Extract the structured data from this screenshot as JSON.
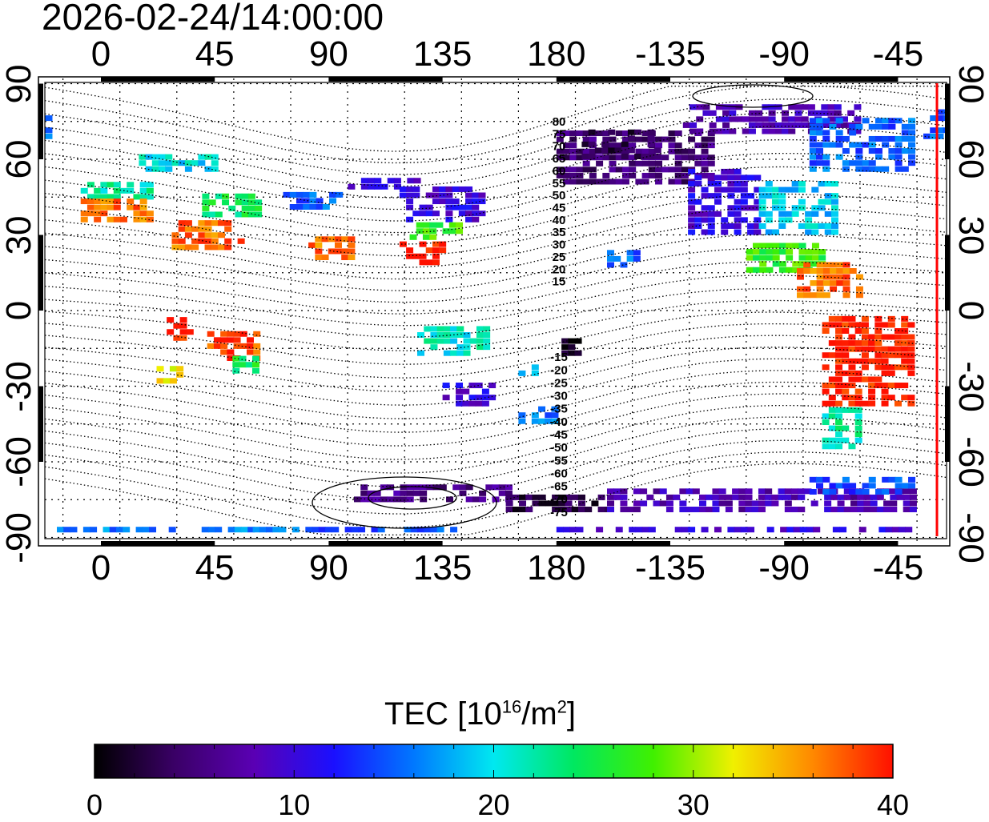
{
  "title": "2026-02-24/14:00:00",
  "x_ticks": [
    "0",
    "45",
    "90",
    "135",
    "180",
    "-135",
    "-90",
    "-45"
  ],
  "y_ticks": [
    "90",
    "60",
    "30",
    "0",
    "-30",
    "-60",
    "-90"
  ],
  "maglat_labels": [
    "80",
    "75",
    "70",
    "65",
    "60",
    "55",
    "50",
    "45",
    "40",
    "35",
    "30",
    "25",
    "20",
    "15",
    "-15",
    "-20",
    "-25",
    "-30",
    "-35",
    "-40",
    "-45",
    "-50",
    "-55",
    "-60",
    "-65",
    "-70",
    "-75"
  ],
  "colorbar": {
    "label_main": "TEC  [10",
    "label_exp": "16",
    "label_unit": "/m",
    "label_exp2": "2",
    "label_end": "]",
    "ticks": [
      "0",
      "10",
      "20",
      "30",
      "40"
    ],
    "range": [
      0,
      40
    ],
    "colors": [
      "#000000",
      "#3a0066",
      "#5a00b4",
      "#1a10ff",
      "#0078ff",
      "#00e8f0",
      "#00e860",
      "#40f000",
      "#f0f000",
      "#ff8800",
      "#ff1000"
    ]
  },
  "terminator_color": "#ff0000",
  "tec_regions": [
    {
      "lon": [
        -8,
        20
      ],
      "lat": [
        44,
        50
      ],
      "tec": 22
    },
    {
      "lon": [
        -8,
        20
      ],
      "lat": [
        35,
        44
      ],
      "tec": 37
    },
    {
      "lon": [
        28,
        55
      ],
      "lat": [
        24,
        35
      ],
      "tec": 37
    },
    {
      "lon": [
        40,
        62
      ],
      "lat": [
        37,
        45
      ],
      "tec": 24
    },
    {
      "lon": [
        15,
        45
      ],
      "lat": [
        55,
        62
      ],
      "tec": 20
    },
    {
      "lon": [
        72,
        95
      ],
      "lat": [
        40,
        46
      ],
      "tec": 15
    },
    {
      "lon": [
        95,
        125
      ],
      "lat": [
        48,
        52
      ],
      "tec": 10
    },
    {
      "lon": [
        82,
        98
      ],
      "lat": [
        20,
        28
      ],
      "tec": 37
    },
    {
      "lon": [
        118,
        150
      ],
      "lat": [
        35,
        48
      ],
      "tec": 10
    },
    {
      "lon": [
        122,
        142
      ],
      "lat": [
        28,
        34
      ],
      "tec": 27
    },
    {
      "lon": [
        118,
        135
      ],
      "lat": [
        18,
        27
      ],
      "tec": 40
    },
    {
      "lon": [
        26,
        34
      ],
      "lat": [
        -12,
        -4
      ],
      "tec": 40
    },
    {
      "lon": [
        42,
        62
      ],
      "lat": [
        -20,
        -10
      ],
      "tec": 38
    },
    {
      "lon": [
        52,
        62
      ],
      "lat": [
        -25,
        -20
      ],
      "tec": 25
    },
    {
      "lon": [
        22,
        32
      ],
      "lat": [
        -29,
        -22
      ],
      "tec": 33
    },
    {
      "lon": [
        125,
        152
      ],
      "lat": [
        -18,
        -8
      ],
      "tec": 21
    },
    {
      "lon": [
        135,
        155
      ],
      "lat": [
        -38,
        -30
      ],
      "tec": 10
    },
    {
      "lon": [
        165,
        178
      ],
      "lat": [
        -45,
        -38
      ],
      "tec": 16
    },
    {
      "lon": [
        165,
        172
      ],
      "lat": [
        -26,
        -22
      ],
      "tec": 17
    },
    {
      "lon": [
        -178,
        -172
      ],
      "lat": [
        -18,
        -13
      ],
      "tec": 1
    },
    {
      "lon": [
        -160,
        -148
      ],
      "lat": [
        17,
        22
      ],
      "tec": 15
    },
    {
      "lon": [
        -180,
        -120
      ],
      "lat": [
        50,
        70
      ],
      "tec": 5
    },
    {
      "lon": [
        -170,
        -140
      ],
      "lat": [
        60,
        72
      ],
      "tec": 3
    },
    {
      "lon": [
        -130,
        -60
      ],
      "lat": [
        70,
        82
      ],
      "tec": 8
    },
    {
      "lon": [
        -128,
        -100
      ],
      "lat": [
        30,
        55
      ],
      "tec": 10
    },
    {
      "lon": [
        -100,
        -70
      ],
      "lat": [
        30,
        50
      ],
      "tec": 19
    },
    {
      "lon": [
        -80,
        -40
      ],
      "lat": [
        55,
        75
      ],
      "tec": 15
    },
    {
      "lon": [
        -105,
        -75
      ],
      "lat": [
        15,
        25
      ],
      "tec": 27
    },
    {
      "lon": [
        -85,
        -60
      ],
      "lat": [
        5,
        18
      ],
      "tec": 37
    },
    {
      "lon": [
        -75,
        -40
      ],
      "lat": [
        -38,
        -3
      ],
      "tec": 40
    },
    {
      "lon": [
        -75,
        -62
      ],
      "lat": [
        -55,
        -40
      ],
      "tec": 22
    },
    {
      "lon": [
        -35,
        -20
      ],
      "lat": [
        68,
        78
      ],
      "tec": 15
    },
    {
      "lon": [
        100,
        160
      ],
      "lat": [
        -76,
        -70
      ],
      "tec": 6
    },
    {
      "lon": [
        160,
        200
      ],
      "lat": [
        -80,
        -74
      ],
      "tec": 3
    },
    {
      "lon": [
        -160,
        -40
      ],
      "lat": [
        -80,
        -72
      ],
      "tec": 8
    },
    {
      "lon": [
        -80,
        -40
      ],
      "lat": [
        -73,
        -68
      ],
      "tec": 14
    },
    {
      "lon": [
        -20,
        60
      ],
      "lat": [
        -88,
        -86
      ],
      "tec": 16
    },
    {
      "lon": [
        60,
        140
      ],
      "lat": [
        -88,
        -86
      ],
      "tec": 15
    },
    {
      "lon": [
        -180,
        -40
      ],
      "lat": [
        -88,
        -86
      ],
      "tec": 10
    }
  ]
}
